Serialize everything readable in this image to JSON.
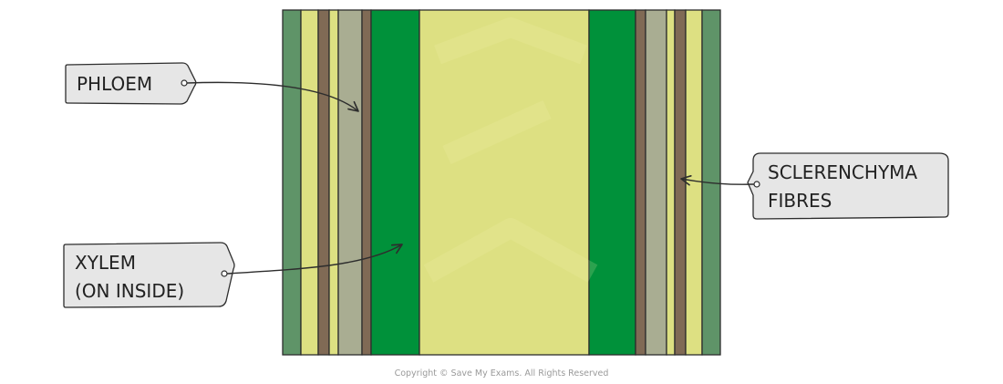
{
  "labels": {
    "phloem": "PHLOEM",
    "xylem_line1": "XYLEM",
    "xylem_line2": "(ON  INSIDE)",
    "sclerenchyma_line1": "SCLERENCHYMA",
    "sclerenchyma_line2": "FIBRES"
  },
  "copyright": "Copyright © Save My Exams. All Rights Reserved",
  "colors": {
    "epidermis": "#5f9468",
    "cortex": "#dde082",
    "sclerenchyma": "#806a55",
    "phloem": "#a9ad92",
    "xylem": "#00913a",
    "pith": "#dde082",
    "label_fill": "#e6e6e6",
    "outline": "#2d2d2d"
  }
}
